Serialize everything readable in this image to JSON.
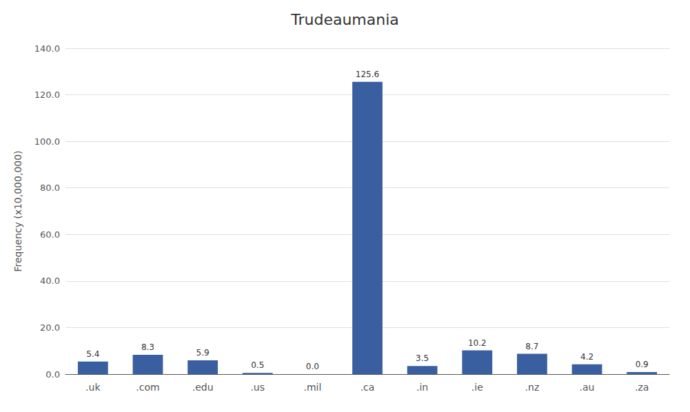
{
  "chart_data": {
    "type": "bar",
    "title": "Trudeaumania",
    "categories": [
      ".uk",
      ".com",
      ".edu",
      ".us",
      ".mil",
      ".ca",
      ".in",
      ".ie",
      ".nz",
      ".au",
      ".za"
    ],
    "values": [
      5.4,
      8.3,
      5.9,
      0.5,
      0.0,
      125.6,
      3.5,
      10.2,
      8.7,
      4.2,
      0.9
    ],
    "value_labels": [
      "5.4",
      "8.3",
      "5.9",
      "0.5",
      "0.0",
      "125.6",
      "3.5",
      "10.2",
      "8.7",
      "4.2",
      "0.9"
    ],
    "data_labels": true,
    "color": "#3A5FA0",
    "ylabel": "Frequency (x10,000,000)",
    "ylim": [
      0,
      140
    ],
    "yticks": [
      {
        "value": 0,
        "label": "0.0"
      },
      {
        "value": 20,
        "label": "20.0"
      },
      {
        "value": 40,
        "label": "40.0"
      },
      {
        "value": 60,
        "label": "60.0"
      },
      {
        "value": 80,
        "label": "80.0"
      },
      {
        "value": 100,
        "label": "100.0"
      },
      {
        "value": 120,
        "label": "120.0"
      },
      {
        "value": 140,
        "label": "140.0"
      }
    ],
    "grid": true
  }
}
